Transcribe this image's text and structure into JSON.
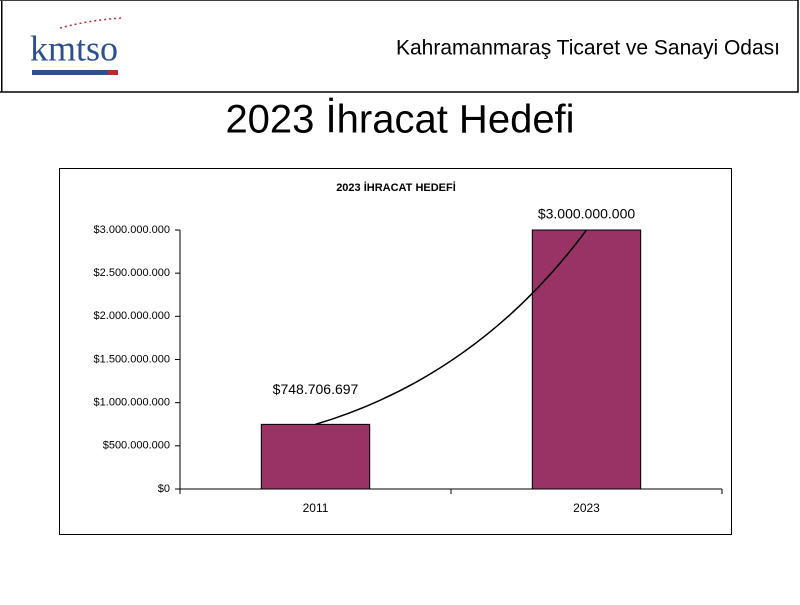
{
  "header": {
    "logo": "kmtso",
    "organization": "Kahramanmaraş Ticaret ve Sanayi Odası"
  },
  "slide_title": "2023 İhracat Hedefi",
  "chart_data": {
    "type": "bar",
    "title": "2023 İHRACAT HEDEFİ",
    "categories": [
      "2011",
      "2023"
    ],
    "values": [
      748706697,
      3000000000
    ],
    "value_labels": [
      "$748.706.697",
      "$3.000.000.000"
    ],
    "color": "#993366",
    "ylim": [
      0,
      3000000000
    ],
    "yticks": [
      {
        "value": 0,
        "label": "$0"
      },
      {
        "value": 500000000,
        "label": "$500.000.000"
      },
      {
        "value": 1000000000,
        "label": "$1.000.000.000"
      },
      {
        "value": 1500000000,
        "label": "$1.500.000.000"
      },
      {
        "value": 2000000000,
        "label": "$2.000.000.000"
      },
      {
        "value": 2500000000,
        "label": "$2.500.000.000"
      },
      {
        "value": 3000000000,
        "label": "$3.000.000.000"
      }
    ],
    "grid": false
  }
}
